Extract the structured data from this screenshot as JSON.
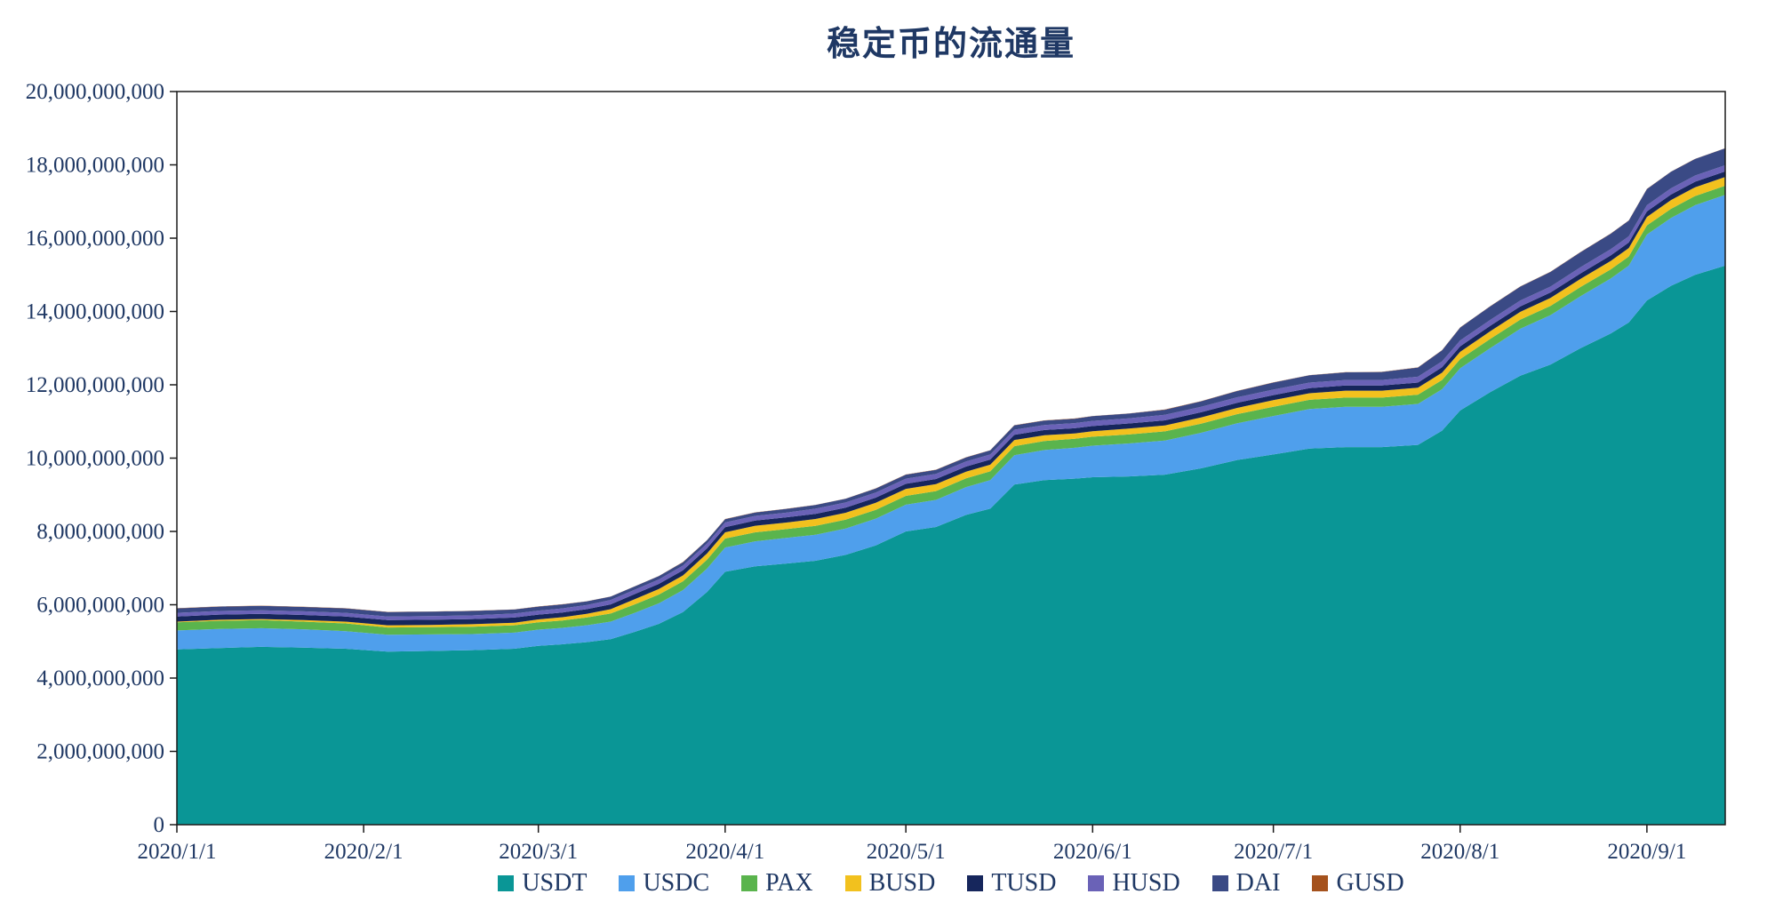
{
  "chart_data": {
    "type": "area",
    "stacked": true,
    "title": "稳定币的流通量",
    "grid": false,
    "unit": 1000000000,
    "text_color": "#1f3864",
    "axis_color": "#1a1a1a",
    "x_days": [
      0,
      7,
      14,
      21,
      28,
      35,
      42,
      49,
      56,
      60,
      64,
      68,
      72,
      76,
      80,
      84,
      88,
      91,
      96,
      101,
      106,
      111,
      116,
      121,
      126,
      131,
      135,
      139,
      144,
      149,
      152,
      158,
      164,
      170,
      176,
      182,
      188,
      194,
      200,
      206,
      210,
      213,
      218,
      223,
      228,
      233,
      238,
      241,
      244,
      248,
      252,
      257
    ],
    "series": [
      {
        "name": "USDT",
        "color": "#0a9696",
        "values": [
          4.78,
          4.82,
          4.85,
          4.83,
          4.8,
          4.72,
          4.74,
          4.76,
          4.8,
          4.88,
          4.92,
          4.98,
          5.06,
          5.26,
          5.48,
          5.8,
          6.35,
          6.9,
          7.05,
          7.12,
          7.2,
          7.36,
          7.62,
          8.0,
          8.12,
          8.45,
          8.62,
          9.28,
          9.4,
          9.44,
          9.48,
          9.5,
          9.55,
          9.72,
          9.95,
          10.1,
          10.26,
          10.3,
          10.3,
          10.36,
          10.75,
          11.3,
          11.8,
          12.25,
          12.55,
          13.0,
          13.4,
          13.7,
          14.3,
          14.7,
          15.0,
          15.25
        ]
      },
      {
        "name": "USDC",
        "color": "#4f9fec",
        "values": [
          0.52,
          0.52,
          0.51,
          0.5,
          0.48,
          0.46,
          0.45,
          0.44,
          0.44,
          0.44,
          0.45,
          0.46,
          0.48,
          0.52,
          0.56,
          0.6,
          0.64,
          0.66,
          0.68,
          0.7,
          0.71,
          0.72,
          0.73,
          0.73,
          0.74,
          0.76,
          0.78,
          0.8,
          0.82,
          0.84,
          0.86,
          0.9,
          0.93,
          0.97,
          1.0,
          1.05,
          1.08,
          1.1,
          1.1,
          1.12,
          1.13,
          1.15,
          1.2,
          1.28,
          1.35,
          1.42,
          1.5,
          1.55,
          1.8,
          1.85,
          1.9,
          1.93
        ]
      },
      {
        "name": "PAX",
        "color": "#5ab44d",
        "values": [
          0.22,
          0.22,
          0.22,
          0.21,
          0.21,
          0.2,
          0.2,
          0.2,
          0.2,
          0.2,
          0.2,
          0.21,
          0.22,
          0.23,
          0.24,
          0.24,
          0.24,
          0.245,
          0.245,
          0.24,
          0.24,
          0.24,
          0.24,
          0.24,
          0.24,
          0.24,
          0.24,
          0.245,
          0.245,
          0.245,
          0.245,
          0.245,
          0.25,
          0.25,
          0.25,
          0.25,
          0.25,
          0.25,
          0.25,
          0.25,
          0.25,
          0.25,
          0.25,
          0.25,
          0.25,
          0.25,
          0.25,
          0.25,
          0.25,
          0.25,
          0.25,
          0.25
        ]
      },
      {
        "name": "BUSD",
        "color": "#f2c11e",
        "values": [
          0.02,
          0.03,
          0.03,
          0.04,
          0.05,
          0.06,
          0.06,
          0.07,
          0.07,
          0.08,
          0.09,
          0.1,
          0.12,
          0.14,
          0.15,
          0.16,
          0.17,
          0.17,
          0.18,
          0.18,
          0.19,
          0.19,
          0.19,
          0.19,
          0.19,
          0.18,
          0.18,
          0.17,
          0.16,
          0.15,
          0.15,
          0.16,
          0.16,
          0.17,
          0.17,
          0.18,
          0.18,
          0.19,
          0.19,
          0.19,
          0.2,
          0.2,
          0.21,
          0.21,
          0.22,
          0.22,
          0.23,
          0.23,
          0.23,
          0.24,
          0.24,
          0.24
        ]
      },
      {
        "name": "TUSD",
        "color": "#16265c",
        "values": [
          0.14,
          0.14,
          0.14,
          0.14,
          0.14,
          0.14,
          0.14,
          0.14,
          0.14,
          0.13,
          0.13,
          0.13,
          0.13,
          0.14,
          0.14,
          0.14,
          0.14,
          0.14,
          0.14,
          0.14,
          0.14,
          0.14,
          0.14,
          0.14,
          0.14,
          0.14,
          0.14,
          0.14,
          0.14,
          0.14,
          0.14,
          0.14,
          0.14,
          0.14,
          0.14,
          0.14,
          0.14,
          0.14,
          0.14,
          0.14,
          0.15,
          0.15,
          0.15,
          0.15,
          0.15,
          0.15,
          0.15,
          0.15,
          0.15,
          0.15,
          0.15,
          0.15
        ]
      },
      {
        "name": "HUSD",
        "color": "#6a62b7",
        "values": [
          0.1,
          0.1,
          0.1,
          0.1,
          0.1,
          0.1,
          0.1,
          0.1,
          0.11,
          0.11,
          0.11,
          0.11,
          0.12,
          0.12,
          0.12,
          0.13,
          0.13,
          0.13,
          0.13,
          0.13,
          0.14,
          0.14,
          0.14,
          0.14,
          0.14,
          0.14,
          0.14,
          0.14,
          0.14,
          0.14,
          0.14,
          0.14,
          0.15,
          0.15,
          0.15,
          0.15,
          0.15,
          0.15,
          0.15,
          0.16,
          0.16,
          0.16,
          0.16,
          0.16,
          0.16,
          0.17,
          0.17,
          0.17,
          0.17,
          0.17,
          0.17,
          0.17
        ]
      },
      {
        "name": "DAI",
        "color": "#3a4a85",
        "values": [
          0.12,
          0.12,
          0.12,
          0.12,
          0.12,
          0.12,
          0.12,
          0.12,
          0.11,
          0.11,
          0.11,
          0.1,
          0.09,
          0.09,
          0.09,
          0.09,
          0.09,
          0.09,
          0.09,
          0.1,
          0.1,
          0.1,
          0.11,
          0.11,
          0.11,
          0.11,
          0.11,
          0.12,
          0.12,
          0.12,
          0.13,
          0.13,
          0.14,
          0.15,
          0.17,
          0.19,
          0.2,
          0.21,
          0.22,
          0.25,
          0.3,
          0.35,
          0.37,
          0.38,
          0.4,
          0.41,
          0.42,
          0.43,
          0.44,
          0.45,
          0.45,
          0.46
        ]
      },
      {
        "name": "GUSD",
        "color": "#a5521d",
        "values": [
          0.005,
          0.005,
          0.005,
          0.005,
          0.005,
          0.005,
          0.005,
          0.005,
          0.005,
          0.005,
          0.005,
          0.005,
          0.005,
          0.005,
          0.005,
          0.005,
          0.005,
          0.005,
          0.005,
          0.005,
          0.005,
          0.005,
          0.005,
          0.005,
          0.005,
          0.005,
          0.005,
          0.005,
          0.005,
          0.005,
          0.005,
          0.005,
          0.005,
          0.005,
          0.005,
          0.005,
          0.005,
          0.005,
          0.005,
          0.005,
          0.005,
          0.005,
          0.005,
          0.005,
          0.005,
          0.005,
          0.005,
          0.005,
          0.005,
          0.005,
          0.005,
          0.005
        ]
      }
    ],
    "y_axis": {
      "min": 0,
      "max": 20000000000,
      "tick_step": 2000000000,
      "tick_labels": [
        "0",
        "2,000,000,000",
        "4,000,000,000",
        "6,000,000,000",
        "8,000,000,000",
        "10,000,000,000",
        "12,000,000,000",
        "14,000,000,000",
        "16,000,000,000",
        "18,000,000,000",
        "20,000,000,000"
      ]
    },
    "x_axis": {
      "tick_labels": [
        "2020/1/1",
        "2020/2/1",
        "2020/3/1",
        "2020/4/1",
        "2020/5/1",
        "2020/6/1",
        "2020/7/1",
        "2020/8/1",
        "2020/9/1"
      ],
      "tick_days": [
        0,
        31,
        60,
        91,
        121,
        152,
        182,
        213,
        244
      ]
    },
    "legend": {
      "position": "bottom",
      "entries": [
        "USDT",
        "USDC",
        "PAX",
        "BUSD",
        "TUSD",
        "HUSD",
        "DAI",
        "GUSD"
      ]
    }
  }
}
